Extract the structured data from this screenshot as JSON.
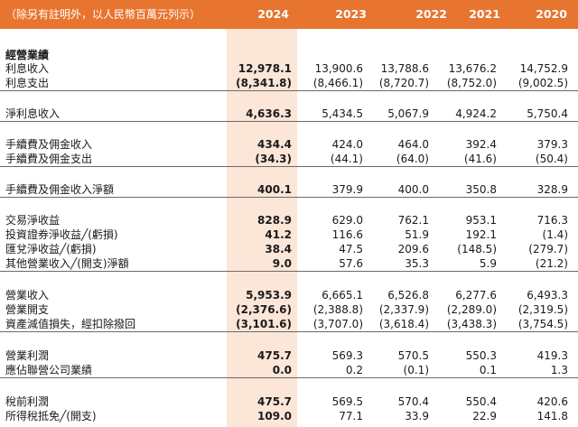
{
  "header": {
    "unit_note": "（除另有註明外，以人民幣百萬元列示）",
    "years": [
      "2024",
      "2023",
      "2022",
      "2021",
      "2020"
    ]
  },
  "section_title": "經營業績",
  "rows": [
    {
      "label": "利息收入",
      "values": [
        "12,978.1",
        "13,900.6",
        "13,788.6",
        "13,676.2",
        "14,752.9"
      ]
    },
    {
      "label": "利息支出",
      "values": [
        "(8,341.8)",
        "(8,466.1)",
        "(8,720.7)",
        "(8,752.0)",
        "(9,002.5)"
      ]
    },
    {
      "label": "淨利息收入",
      "values": [
        "4,636.3",
        "5,434.5",
        "5,067.9",
        "4,924.2",
        "5,750.4"
      ]
    },
    {
      "label": "手續費及佣金收入",
      "values": [
        "434.4",
        "424.0",
        "464.0",
        "392.4",
        "379.3"
      ]
    },
    {
      "label": "手續費及佣金支出",
      "values": [
        "(34.3)",
        "(44.1)",
        "(64.0)",
        "(41.6)",
        "(50.4)"
      ]
    },
    {
      "label": "手續費及佣金收入淨額",
      "values": [
        "400.1",
        "379.9",
        "400.0",
        "350.8",
        "328.9"
      ]
    },
    {
      "label": "交易淨收益",
      "values": [
        "828.9",
        "629.0",
        "762.1",
        "953.1",
        "716.3"
      ]
    },
    {
      "label": "投資證券淨收益╱(虧損)",
      "values": [
        "41.2",
        "116.6",
        "51.9",
        "192.1",
        "(1.4)"
      ]
    },
    {
      "label": "匯兌淨收益╱(虧損)",
      "values": [
        "38.4",
        "47.5",
        "209.6",
        "(148.5)",
        "(279.7)"
      ]
    },
    {
      "label": "其他營業收入╱(開支)淨額",
      "values": [
        "9.0",
        "57.6",
        "35.3",
        "5.9",
        "(21.2)"
      ]
    },
    {
      "label": "營業收入",
      "values": [
        "5,953.9",
        "6,665.1",
        "6,526.8",
        "6,277.6",
        "6,493.3"
      ]
    },
    {
      "label": "營業開支",
      "values": [
        "(2,376.6)",
        "(2,388.8)",
        "(2,337.9)",
        "(2,289.0)",
        "(2,319.5)"
      ]
    },
    {
      "label": "資產減值損失，經扣除撥回",
      "values": [
        "(3,101.6)",
        "(3,707.0)",
        "(3,618.4)",
        "(3,438.3)",
        "(3,754.5)"
      ]
    },
    {
      "label": "營業利潤",
      "values": [
        "475.7",
        "569.3",
        "570.5",
        "550.3",
        "419.3"
      ]
    },
    {
      "label": "應佔聯營公司業績",
      "values": [
        "0.0",
        "0.2",
        "(0.1)",
        "0.1",
        "1.3"
      ]
    },
    {
      "label": "稅前利潤",
      "values": [
        "475.7",
        "569.5",
        "570.4",
        "550.4",
        "420.6"
      ]
    },
    {
      "label": "所得稅抵免╱(開支)",
      "values": [
        "109.0",
        "77.1",
        "33.9",
        "22.9",
        "141.8"
      ]
    }
  ]
}
